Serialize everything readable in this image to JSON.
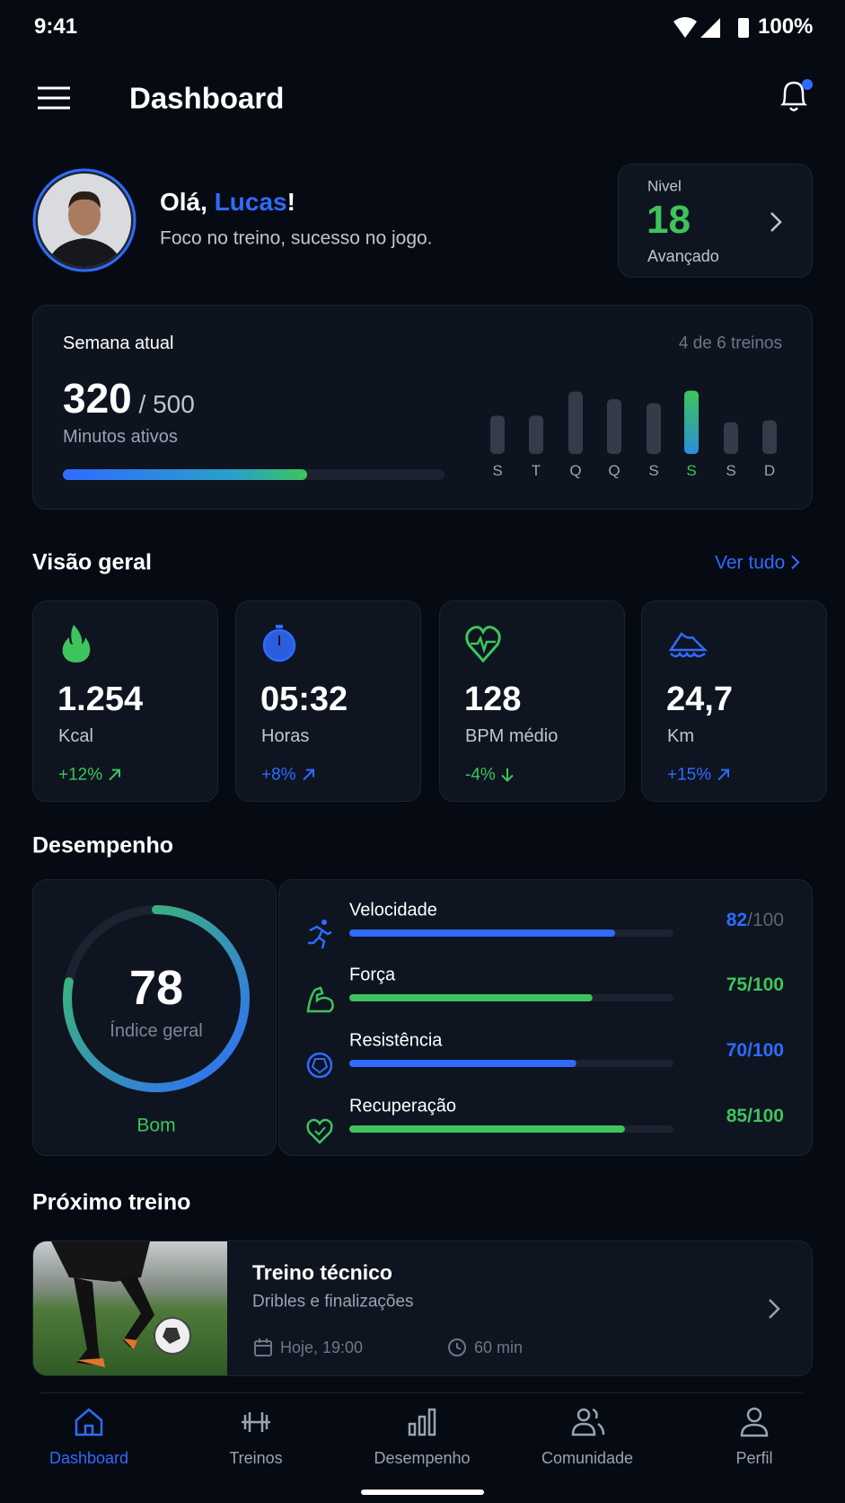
{
  "status_bar": {
    "time": "9:41",
    "battery": "100%"
  },
  "header": {
    "title": "Dashboard"
  },
  "profile": {
    "greeting": "Olá, ",
    "name": "Lucas",
    "exclamation": "!",
    "subtitle": "Foco no treino, sucesso no jogo."
  },
  "level": {
    "label": "Nivel",
    "value": "18",
    "rank": "Avançado"
  },
  "week": {
    "title": "Semana atual",
    "sessions": "4 de 6 treinos",
    "minutes": 320,
    "separator": "/",
    "goal": 500,
    "minutes_label": "Minutos ativos",
    "active_day": 5,
    "days": [
      {
        "label": "S",
        "value": 40
      },
      {
        "label": "T",
        "value": 40
      },
      {
        "label": "Q",
        "value": 65
      },
      {
        "label": "Q",
        "value": 57
      },
      {
        "label": "S",
        "value": 53
      },
      {
        "label": "S",
        "value": 66
      },
      {
        "label": "S",
        "value": 33
      },
      {
        "label": "D",
        "value": 35
      }
    ]
  },
  "overview": {
    "title": "Visão geral",
    "link": "Ver tudo",
    "cards": [
      {
        "value": "1.254",
        "label": "Kcal",
        "change": "+12%",
        "trend": "up",
        "color": "#3ec45c"
      },
      {
        "value": "05:32",
        "label": "Horas",
        "change": "+8%",
        "trend": "up",
        "color": "#2f6bff"
      },
      {
        "value": "128",
        "label": "BPM médio",
        "change": "-4%",
        "trend": "down",
        "color": "#3ec45c"
      },
      {
        "value": "24,7",
        "label": "Km",
        "change": "+15%",
        "trend": "up",
        "color": "#2f6bff"
      }
    ]
  },
  "performance": {
    "title": "Desempenho",
    "score": 78,
    "max": 100,
    "separator": "/",
    "score_label": "Índice geral",
    "rating": "Bom",
    "items": [
      {
        "label": "Velocidade",
        "score": 82,
        "color": "#2f6bff",
        "max_color": "#5b6472"
      },
      {
        "label": "Força",
        "score": 75,
        "color": "#3ec45c",
        "max_color": "#3ec45c"
      },
      {
        "label": "Resistência",
        "score": 70,
        "color": "#2f6bff",
        "max_color": "#2f6bff"
      },
      {
        "label": "Recuperação",
        "score": 85,
        "color": "#3ec45c",
        "max_color": "#3ec45c"
      }
    ]
  },
  "next_workout": {
    "title": "Próximo treino",
    "name": "Treino técnico",
    "description": "Dribles e finalizações",
    "time": "Hoje, 19:00",
    "duration": "60 min"
  },
  "nav": {
    "items": [
      {
        "label": "Dashboard",
        "active": true
      },
      {
        "label": "Treinos",
        "active": false
      },
      {
        "label": "Desempenho",
        "active": false
      },
      {
        "label": "Comunidade",
        "active": false
      },
      {
        "label": "Perfil",
        "active": false
      }
    ]
  }
}
